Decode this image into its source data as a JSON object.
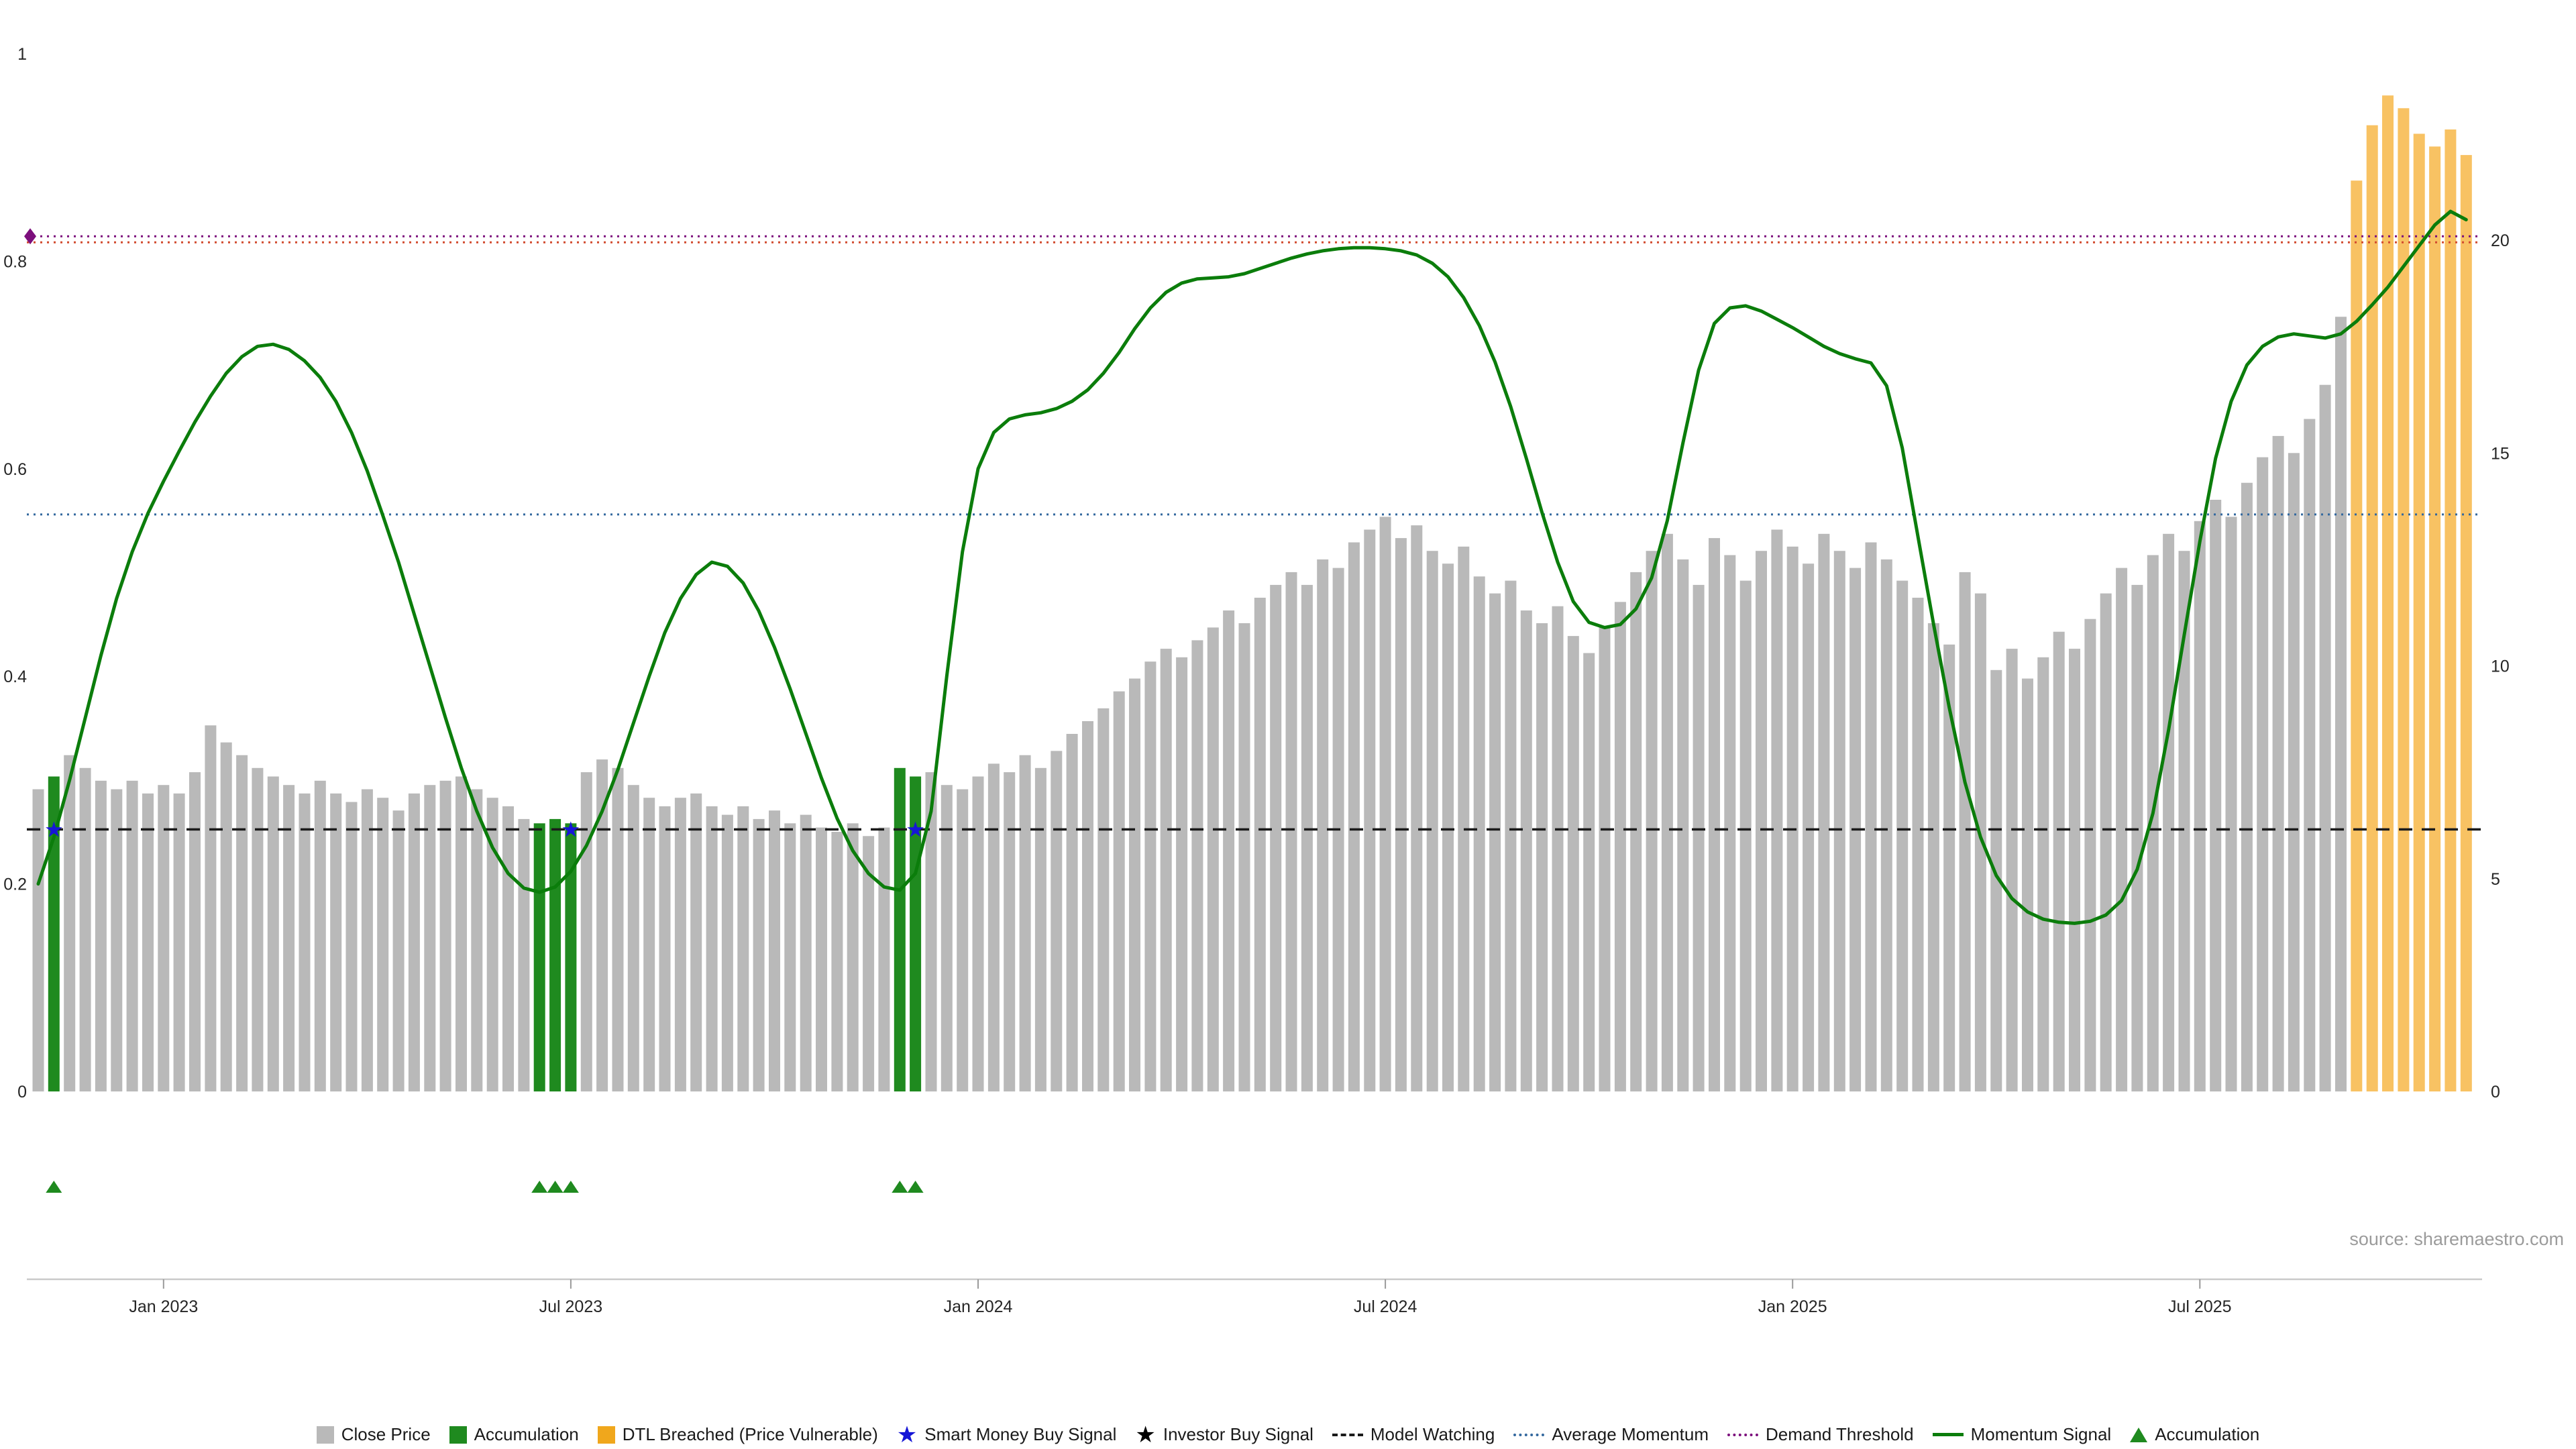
{
  "chart_data": {
    "type": "bar+line",
    "title": "",
    "source": "source: sharemaestro.com",
    "x_tick_labels": [
      "Jan 2023",
      "Jul 2023",
      "Jan 2024",
      "Jul 2024",
      "Jan 2025",
      "Jul 2025"
    ],
    "x_tick_weeks": [
      8,
      34,
      60,
      86,
      112,
      138
    ],
    "left_axis": {
      "tick_values": [
        0,
        0.2,
        0.4,
        0.6,
        0.8,
        1
      ],
      "tick_labels": [
        "0",
        "0.2",
        "0.4",
        "0.6",
        "0.8",
        "1"
      ],
      "range": [
        0,
        1
      ]
    },
    "right_axis": {
      "tick_values": [
        0,
        5,
        10,
        15,
        20
      ],
      "tick_labels": [
        "0",
        "5",
        "10",
        "15",
        "20"
      ],
      "range": [
        0,
        24.4
      ]
    },
    "bars": {
      "name": "Close Price (weekly)",
      "colors": {
        "default": "#b9b9b9",
        "accumulation": "#1f8a1f",
        "dtl_breached": "#f8c263"
      },
      "accumulation_weeks": [
        1,
        32,
        33,
        34,
        55,
        56
      ],
      "dtl_breached_weeks": [
        148,
        149,
        150,
        151,
        152,
        153,
        154,
        155
      ],
      "values": [
        7.1,
        7.4,
        7.9,
        7.6,
        7.3,
        7.1,
        7.3,
        7.0,
        7.2,
        7.0,
        7.5,
        8.6,
        8.2,
        7.9,
        7.6,
        7.4,
        7.2,
        7.0,
        7.3,
        7.0,
        6.8,
        7.1,
        6.9,
        6.6,
        7.0,
        7.2,
        7.3,
        7.4,
        7.1,
        6.9,
        6.7,
        6.4,
        6.3,
        6.4,
        6.3,
        7.5,
        7.8,
        7.6,
        7.2,
        6.9,
        6.7,
        6.9,
        7.0,
        6.7,
        6.5,
        6.7,
        6.4,
        6.6,
        6.3,
        6.5,
        6.2,
        6.1,
        6.3,
        6.0,
        6.2,
        7.6,
        7.4,
        7.5,
        7.2,
        7.1,
        7.4,
        7.7,
        7.5,
        7.9,
        7.6,
        8.0,
        8.4,
        8.7,
        9.0,
        9.4,
        9.7,
        10.1,
        10.4,
        10.2,
        10.6,
        10.9,
        11.3,
        11.0,
        11.6,
        11.9,
        12.2,
        11.9,
        12.5,
        12.3,
        12.9,
        13.2,
        13.5,
        13.0,
        13.3,
        12.7,
        12.4,
        12.8,
        12.1,
        11.7,
        12.0,
        11.3,
        11.0,
        11.4,
        10.7,
        10.3,
        10.9,
        11.5,
        12.2,
        12.7,
        13.1,
        12.5,
        11.9,
        13.0,
        12.6,
        12.0,
        12.7,
        13.2,
        12.8,
        12.4,
        13.1,
        12.7,
        12.3,
        12.9,
        12.5,
        12.0,
        11.6,
        11.0,
        10.5,
        12.2,
        11.7,
        9.9,
        10.4,
        9.7,
        10.2,
        10.8,
        10.4,
        11.1,
        11.7,
        12.3,
        11.9,
        12.6,
        13.1,
        12.7,
        13.4,
        13.9,
        13.5,
        14.3,
        14.9,
        15.4,
        15.0,
        15.8,
        16.6,
        18.2,
        21.4,
        22.7,
        23.4,
        23.1,
        22.5,
        22.2,
        22.6,
        22.0
      ]
    },
    "momentum_signal": {
      "name": "Momentum Signal",
      "color": "#0b7d0b",
      "values": [
        0.2,
        0.245,
        0.3,
        0.36,
        0.42,
        0.475,
        0.52,
        0.557,
        0.588,
        0.617,
        0.645,
        0.67,
        0.692,
        0.708,
        0.718,
        0.72,
        0.715,
        0.704,
        0.688,
        0.665,
        0.635,
        0.598,
        0.555,
        0.51,
        0.46,
        0.41,
        0.36,
        0.312,
        0.27,
        0.235,
        0.21,
        0.196,
        0.192,
        0.197,
        0.212,
        0.237,
        0.27,
        0.31,
        0.355,
        0.4,
        0.442,
        0.475,
        0.498,
        0.51,
        0.506,
        0.49,
        0.463,
        0.428,
        0.388,
        0.345,
        0.302,
        0.263,
        0.232,
        0.21,
        0.197,
        0.194,
        0.21,
        0.27,
        0.4,
        0.52,
        0.6,
        0.635,
        0.648,
        0.652,
        0.654,
        0.658,
        0.665,
        0.676,
        0.692,
        0.712,
        0.735,
        0.755,
        0.77,
        0.779,
        0.783,
        0.784,
        0.785,
        0.788,
        0.793,
        0.798,
        0.803,
        0.807,
        0.81,
        0.812,
        0.813,
        0.813,
        0.812,
        0.81,
        0.806,
        0.798,
        0.785,
        0.765,
        0.738,
        0.703,
        0.66,
        0.61,
        0.558,
        0.51,
        0.472,
        0.452,
        0.447,
        0.45,
        0.465,
        0.495,
        0.55,
        0.625,
        0.695,
        0.74,
        0.755,
        0.757,
        0.752,
        0.744,
        0.736,
        0.727,
        0.718,
        0.711,
        0.706,
        0.702,
        0.68,
        0.62,
        0.535,
        0.45,
        0.37,
        0.298,
        0.245,
        0.208,
        0.186,
        0.173,
        0.166,
        0.163,
        0.162,
        0.164,
        0.17,
        0.184,
        0.214,
        0.268,
        0.348,
        0.44,
        0.53,
        0.61,
        0.665,
        0.7,
        0.718,
        0.727,
        0.73,
        0.728,
        0.726,
        0.73,
        0.742,
        0.758,
        0.775,
        0.795,
        0.815,
        0.835,
        0.848,
        0.84
      ]
    },
    "reference_lines": [
      {
        "name": "Model Watching",
        "axis": "left",
        "value": 0.2525,
        "style": "dashed",
        "color": "#1a1a1a"
      },
      {
        "name": "Average Momentum",
        "axis": "left",
        "value": 0.556,
        "style": "dotted",
        "color": "#33689e"
      },
      {
        "name": "Demand Threshold",
        "axis": "left",
        "value": 0.824,
        "style": "dotted",
        "color": "#7c0f7c"
      },
      {
        "name": "DTL",
        "axis": "right",
        "value": 19.95,
        "style": "dotted",
        "color": "#d24a2e"
      }
    ],
    "markers": {
      "demand_threshold_diamond": {
        "week": 0,
        "value": 0.824,
        "color": "#7c0f7c"
      },
      "smart_money_buy": {
        "weeks": [
          1,
          34,
          56
        ],
        "value": 0.2525,
        "color": "#1616d6"
      },
      "investor_buy": {
        "weeks": []
      },
      "accumulation_triangles": {
        "weeks": [
          1,
          32,
          33,
          34,
          55,
          56
        ],
        "color": "#1f8a1f"
      }
    },
    "legend": [
      {
        "label": "Close Price",
        "swatch": "square",
        "color": "#b9b9b9"
      },
      {
        "label": "Accumulation",
        "swatch": "square",
        "color": "#1f8a1f"
      },
      {
        "label": "DTL Breached (Price Vulnerable)",
        "swatch": "square",
        "color": "#f0a71c"
      },
      {
        "label": "Smart Money Buy Signal",
        "swatch": "star",
        "color": "#1616d6"
      },
      {
        "label": "Investor Buy Signal",
        "swatch": "star",
        "color": "#000000"
      },
      {
        "label": "Model Watching",
        "swatch": "dash",
        "color": "#1a1a1a"
      },
      {
        "label": "Average Momentum",
        "swatch": "dots",
        "color": "#33689e"
      },
      {
        "label": "Demand Threshold",
        "swatch": "dots",
        "color": "#7c0f7c"
      },
      {
        "label": "Momentum Signal",
        "swatch": "line",
        "color": "#0b7d0b"
      },
      {
        "label": "Accumulation",
        "swatch": "triangle",
        "color": "#1f8a1f"
      }
    ]
  }
}
